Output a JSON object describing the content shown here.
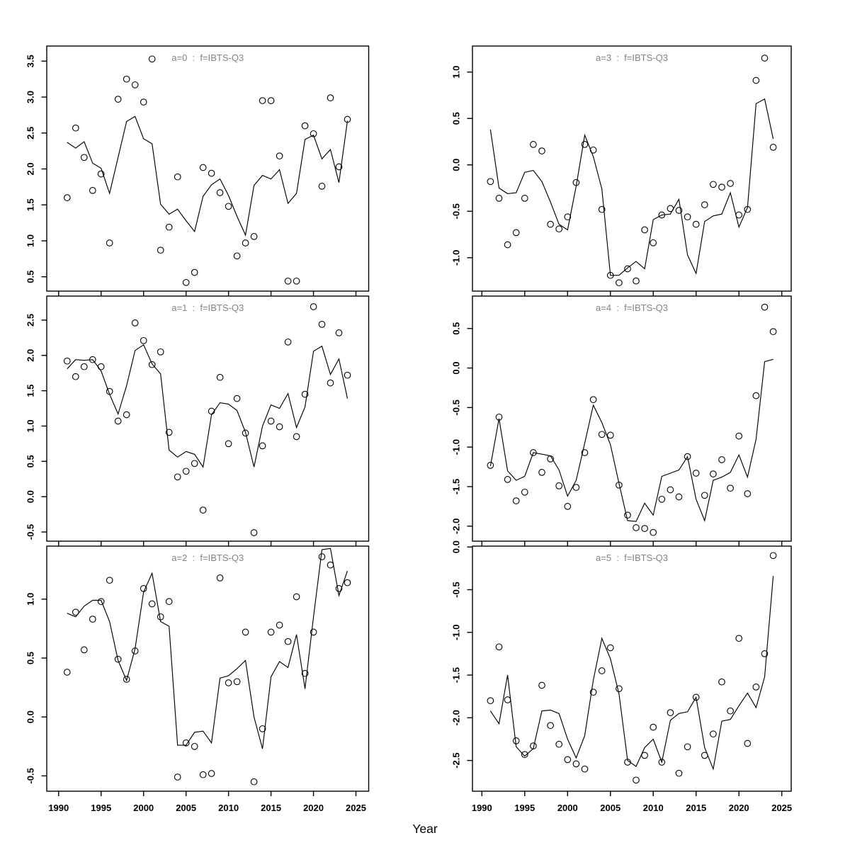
{
  "figure": {
    "xlabel": "Year",
    "colors": {
      "background": "#ffffff",
      "ink": "#000000",
      "panel_title": "#848484"
    }
  },
  "chart_data": [
    {
      "type": "line",
      "title": "a=0  :  f=IBTS-Q3",
      "xlabel": "Year",
      "ylabel": "",
      "x": [
        1991,
        1992,
        1993,
        1994,
        1995,
        1996,
        1997,
        1998,
        1999,
        2000,
        2001,
        2002,
        2003,
        2004,
        2005,
        2006,
        2007,
        2008,
        2009,
        2010,
        2011,
        2012,
        2013,
        2014,
        2015,
        2016,
        2017,
        2018,
        2019,
        2020,
        2021,
        2022,
        2023,
        2024
      ],
      "series": [
        {
          "name": "observed",
          "style": "open-circles",
          "values": [
            1.6,
            2.57,
            2.16,
            1.7,
            1.93,
            0.97,
            2.97,
            3.25,
            3.17,
            2.93,
            3.53,
            0.87,
            1.19,
            1.89,
            0.42,
            0.56,
            2.02,
            1.94,
            1.67,
            1.48,
            0.79,
            0.97,
            1.06,
            2.95,
            2.95,
            2.18,
            0.44,
            0.44,
            2.6,
            2.49,
            1.76,
            2.99,
            2.03,
            2.69
          ]
        },
        {
          "name": "fitted",
          "style": "line",
          "values": [
            2.37,
            2.29,
            2.38,
            2.08,
            2.01,
            1.66,
            2.16,
            2.66,
            2.73,
            2.42,
            2.35,
            1.51,
            1.37,
            1.44,
            1.28,
            1.13,
            1.62,
            1.78,
            1.86,
            1.63,
            1.34,
            1.08,
            1.77,
            1.91,
            1.86,
            1.99,
            1.52,
            1.66,
            2.41,
            2.47,
            2.14,
            2.27,
            1.81,
            2.67
          ]
        }
      ],
      "xlim": [
        1988.6,
        2026.5
      ],
      "ylim": [
        0.3,
        3.71
      ],
      "xticks": [
        1990,
        1995,
        2000,
        2005,
        2010,
        2015,
        2020,
        2025
      ],
      "yticks": [
        0.5,
        1.0,
        1.5,
        2.0,
        2.5,
        3.0,
        3.5
      ],
      "grid": false,
      "legend": "none",
      "layout": {
        "col": 0,
        "row": 0
      }
    },
    {
      "type": "line",
      "title": "a=1  :  f=IBTS-Q3",
      "xlabel": "Year",
      "ylabel": "",
      "x": [
        1991,
        1992,
        1993,
        1994,
        1995,
        1996,
        1997,
        1998,
        1999,
        2000,
        2001,
        2002,
        2003,
        2004,
        2005,
        2006,
        2007,
        2008,
        2009,
        2010,
        2011,
        2012,
        2013,
        2014,
        2015,
        2016,
        2017,
        2018,
        2019,
        2020,
        2021,
        2022,
        2023,
        2024
      ],
      "series": [
        {
          "name": "observed",
          "style": "open-circles",
          "values": [
            1.92,
            1.7,
            1.84,
            1.94,
            1.84,
            1.49,
            1.07,
            1.16,
            2.46,
            2.21,
            1.87,
            2.05,
            0.91,
            0.28,
            0.36,
            0.47,
            -0.19,
            1.21,
            1.69,
            0.75,
            1.39,
            0.9,
            -0.51,
            0.72,
            1.07,
            0.99,
            2.19,
            0.85,
            1.45,
            2.69,
            2.44,
            1.61,
            2.32,
            1.72
          ]
        },
        {
          "name": "fitted",
          "style": "line",
          "values": [
            1.81,
            1.94,
            1.93,
            1.94,
            1.78,
            1.45,
            1.17,
            1.57,
            2.07,
            2.15,
            1.88,
            1.74,
            0.66,
            0.56,
            0.64,
            0.6,
            0.42,
            1.16,
            1.33,
            1.31,
            1.22,
            0.91,
            0.42,
            1.0,
            1.3,
            1.25,
            1.46,
            0.98,
            1.27,
            2.06,
            2.13,
            1.73,
            1.95,
            1.39
          ]
        }
      ],
      "xlim": [
        1988.6,
        2026.5
      ],
      "ylim": [
        -0.63,
        2.84
      ],
      "xticks": [
        1990,
        1995,
        2000,
        2005,
        2010,
        2015,
        2020,
        2025
      ],
      "yticks": [
        -0.5,
        0.0,
        0.5,
        1.0,
        1.5,
        2.0,
        2.5
      ],
      "grid": false,
      "legend": "none",
      "layout": {
        "col": 0,
        "row": 1
      }
    },
    {
      "type": "line",
      "title": "a=2  :  f=IBTS-Q3",
      "xlabel": "Year",
      "ylabel": "",
      "x": [
        1991,
        1992,
        1993,
        1994,
        1995,
        1996,
        1997,
        1998,
        1999,
        2000,
        2001,
        2002,
        2003,
        2004,
        2005,
        2006,
        2007,
        2008,
        2009,
        2010,
        2011,
        2012,
        2013,
        2014,
        2015,
        2016,
        2017,
        2018,
        2019,
        2020,
        2021,
        2022,
        2023,
        2024
      ],
      "series": [
        {
          "name": "observed",
          "style": "open-circles",
          "values": [
            0.38,
            0.89,
            0.57,
            0.83,
            0.98,
            1.16,
            0.49,
            0.32,
            0.56,
            1.09,
            0.96,
            0.85,
            0.98,
            -0.51,
            -0.22,
            -0.25,
            -0.49,
            -0.48,
            1.18,
            0.29,
            0.3,
            0.72,
            -0.55,
            -0.1,
            0.72,
            0.78,
            0.64,
            1.02,
            0.37,
            0.72,
            1.36,
            1.29,
            1.09,
            1.14
          ]
        },
        {
          "name": "fitted",
          "style": "line",
          "values": [
            0.88,
            0.85,
            0.94,
            0.99,
            0.99,
            0.81,
            0.48,
            0.31,
            0.58,
            1.06,
            1.22,
            0.81,
            0.77,
            -0.24,
            -0.24,
            -0.13,
            -0.12,
            -0.22,
            0.33,
            0.35,
            0.41,
            0.48,
            0.0,
            -0.27,
            0.34,
            0.47,
            0.42,
            0.7,
            0.24,
            0.85,
            1.42,
            1.43,
            1.03,
            1.24
          ]
        }
      ],
      "xlim": [
        1988.6,
        2026.5
      ],
      "ylim": [
        -0.63,
        1.45
      ],
      "xticks": [
        1990,
        1995,
        2000,
        2005,
        2010,
        2015,
        2020,
        2025
      ],
      "yticks": [
        -0.5,
        0.0,
        0.5,
        1.0
      ],
      "grid": false,
      "legend": "none",
      "layout": {
        "col": 0,
        "row": 2
      }
    },
    {
      "type": "line",
      "title": "a=3  :  f=IBTS-Q3",
      "xlabel": "Year",
      "ylabel": "",
      "x": [
        1991,
        1992,
        1993,
        1994,
        1995,
        1996,
        1997,
        1998,
        1999,
        2000,
        2001,
        2002,
        2003,
        2004,
        2005,
        2006,
        2007,
        2008,
        2009,
        2010,
        2011,
        2012,
        2013,
        2014,
        2015,
        2016,
        2017,
        2018,
        2019,
        2020,
        2021,
        2022,
        2023,
        2024
      ],
      "series": [
        {
          "name": "observed",
          "style": "open-circles",
          "values": [
            -0.18,
            -0.36,
            -0.86,
            -0.73,
            -0.36,
            0.22,
            0.15,
            -0.64,
            -0.69,
            -0.56,
            -0.19,
            0.22,
            0.16,
            -0.48,
            -1.19,
            -1.27,
            -1.12,
            -1.25,
            -0.7,
            -0.84,
            -0.54,
            -0.47,
            -0.49,
            -0.56,
            -0.64,
            -0.43,
            -0.21,
            -0.24,
            -0.2,
            -0.54,
            -0.48,
            0.91,
            1.15,
            0.19
          ]
        },
        {
          "name": "fitted",
          "style": "line",
          "values": [
            0.38,
            -0.25,
            -0.31,
            -0.3,
            -0.08,
            -0.06,
            -0.18,
            -0.4,
            -0.64,
            -0.7,
            -0.23,
            0.32,
            0.09,
            -0.26,
            -1.19,
            -1.19,
            -1.11,
            -1.04,
            -1.12,
            -0.59,
            -0.54,
            -0.53,
            -0.37,
            -0.97,
            -1.17,
            -0.61,
            -0.55,
            -0.53,
            -0.3,
            -0.67,
            -0.46,
            0.66,
            0.71,
            0.28
          ]
        }
      ],
      "xlim": [
        1988.9,
        2026.1
      ],
      "ylim": [
        -1.36,
        1.28
      ],
      "xticks": [
        1990,
        1995,
        2000,
        2005,
        2010,
        2015,
        2020,
        2025
      ],
      "yticks": [
        -1.0,
        -0.5,
        0.0,
        0.5,
        1.0
      ],
      "grid": false,
      "legend": "none",
      "layout": {
        "col": 1,
        "row": 0
      }
    },
    {
      "type": "line",
      "title": "a=4  :  f=IBTS-Q3",
      "xlabel": "Year",
      "ylabel": "",
      "x": [
        1991,
        1992,
        1993,
        1994,
        1995,
        1996,
        1997,
        1998,
        1999,
        2000,
        2001,
        2002,
        2003,
        2004,
        2005,
        2006,
        2007,
        2008,
        2009,
        2010,
        2011,
        2012,
        2013,
        2014,
        2015,
        2016,
        2017,
        2018,
        2019,
        2020,
        2021,
        2022,
        2023,
        2024
      ],
      "series": [
        {
          "name": "observed",
          "style": "open-circles",
          "values": [
            -1.23,
            -0.62,
            -1.41,
            -1.68,
            -1.57,
            -1.07,
            -1.32,
            -1.15,
            -1.49,
            -1.75,
            -1.51,
            -1.07,
            -0.4,
            -0.84,
            -0.85,
            -1.48,
            -1.86,
            -2.02,
            -2.03,
            -2.08,
            -1.66,
            -1.54,
            -1.63,
            -1.12,
            -1.33,
            -1.61,
            -1.34,
            -1.16,
            -1.52,
            -0.86,
            -1.59,
            -0.35,
            0.77,
            0.46
          ]
        },
        {
          "name": "fitted",
          "style": "line",
          "values": [
            -1.24,
            -0.64,
            -1.3,
            -1.42,
            -1.37,
            -1.07,
            -1.09,
            -1.11,
            -1.29,
            -1.62,
            -1.42,
            -0.95,
            -0.47,
            -0.69,
            -0.97,
            -1.46,
            -1.93,
            -1.94,
            -1.71,
            -1.86,
            -1.37,
            -1.33,
            -1.29,
            -1.12,
            -1.66,
            -1.93,
            -1.42,
            -1.38,
            -1.32,
            -1.1,
            -1.38,
            -0.9,
            0.08,
            0.11
          ]
        }
      ],
      "xlim": [
        1988.9,
        2026.1
      ],
      "ylim": [
        -2.19,
        0.91
      ],
      "xticks": [
        1990,
        1995,
        2000,
        2005,
        2010,
        2015,
        2020,
        2025
      ],
      "yticks": [
        -2.0,
        -1.5,
        -1.0,
        -0.5,
        0.0,
        0.5
      ],
      "grid": false,
      "legend": "none",
      "layout": {
        "col": 1,
        "row": 1
      }
    },
    {
      "type": "line",
      "title": "a=5  :  f=IBTS-Q3",
      "xlabel": "Year",
      "ylabel": "",
      "x": [
        1991,
        1992,
        1993,
        1994,
        1995,
        1996,
        1997,
        1998,
        1999,
        2000,
        2001,
        2002,
        2003,
        2004,
        2005,
        2006,
        2007,
        2008,
        2009,
        2010,
        2011,
        2012,
        2013,
        2014,
        2015,
        2016,
        2017,
        2018,
        2019,
        2020,
        2021,
        2022,
        2023,
        2024
      ],
      "series": [
        {
          "name": "observed",
          "style": "open-circles",
          "values": [
            -1.8,
            -1.17,
            -1.79,
            -2.27,
            -2.43,
            -2.33,
            -1.62,
            -2.09,
            -2.31,
            -2.49,
            -2.54,
            -2.6,
            -1.7,
            -1.45,
            -1.18,
            -1.66,
            -2.52,
            -2.73,
            -2.44,
            -2.11,
            -2.52,
            -1.94,
            -2.65,
            -2.34,
            -1.76,
            -2.44,
            -2.19,
            -1.58,
            -1.92,
            -1.07,
            -2.3,
            -1.64,
            -1.25,
            -0.1
          ]
        },
        {
          "name": "fitted",
          "style": "line",
          "values": [
            -1.92,
            -2.07,
            -1.5,
            -2.34,
            -2.45,
            -2.36,
            -1.92,
            -1.91,
            -1.95,
            -2.25,
            -2.47,
            -2.21,
            -1.56,
            -1.07,
            -1.31,
            -1.72,
            -2.5,
            -2.57,
            -2.35,
            -2.25,
            -2.52,
            -2.03,
            -1.95,
            -1.93,
            -1.76,
            -2.35,
            -2.6,
            -2.04,
            -2.02,
            -1.86,
            -1.71,
            -1.88,
            -1.52,
            -0.34
          ]
        }
      ],
      "xlim": [
        1988.9,
        2026.1
      ],
      "ylim": [
        -2.86,
        0.01
      ],
      "xticks": [
        1990,
        1995,
        2000,
        2005,
        2010,
        2015,
        2020,
        2025
      ],
      "yticks": [
        -2.5,
        -2.0,
        -1.5,
        -1.0,
        -0.5,
        0.0
      ],
      "grid": false,
      "legend": "none",
      "layout": {
        "col": 1,
        "row": 2
      }
    }
  ]
}
